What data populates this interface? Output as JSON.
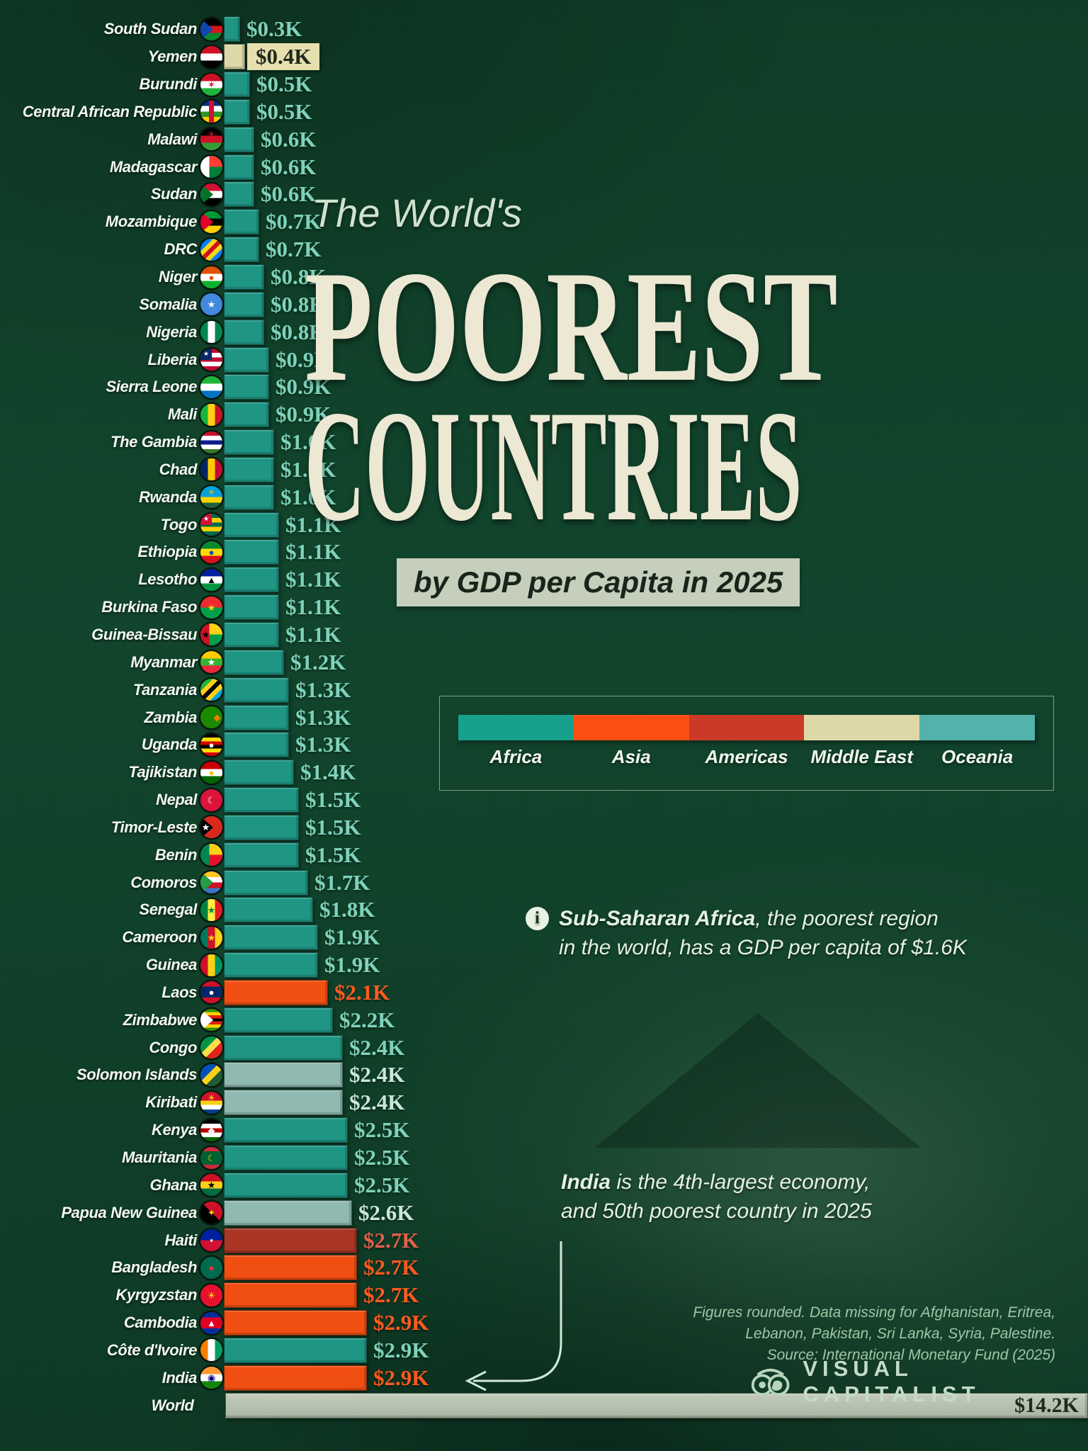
{
  "title": {
    "pre": "The World's",
    "line1": "POOREST",
    "line2": "COUNTRIES",
    "subtitle": "by GDP per Capita in 2025"
  },
  "legend": {
    "items": [
      {
        "label": "Africa",
        "color": "#17a08b"
      },
      {
        "label": "Asia",
        "color": "#fb4f14"
      },
      {
        "label": "Americas",
        "color": "#cb3927"
      },
      {
        "label": "Middle East",
        "color": "#ded8a8"
      },
      {
        "label": "Oceania",
        "color": "#53b3ab"
      }
    ]
  },
  "annotations": {
    "note1": {
      "bold": "Sub-Saharan Africa",
      "rest": ", the poorest region",
      "line2": "in the world, has a GDP per capita of $1.6K"
    },
    "note2": {
      "bold": "India",
      "rest": " is the 4th-largest economy,",
      "line2": "and 50th poorest country in 2025"
    }
  },
  "footer": {
    "line1": "Figures rounded. Data missing for Afghanistan, Eritrea,",
    "line2": "Lebanon, Pakistan, Sri Lanka, Syria, Palestine.",
    "line3": "Source: International Monetary Fund (2025)",
    "brand": "VISUAL CAPITALIST"
  },
  "region_colors": {
    "africa": {
      "bar": "#1f9583",
      "value_text": "#7fd2ba"
    },
    "asia": {
      "bar": "#f14e12",
      "value_text": "#ff5a1f"
    },
    "americas": {
      "bar": "#a93524",
      "value_text": "#e2604b"
    },
    "middle_east": {
      "bar": "#ded8a8",
      "value_text": "#20291b"
    },
    "oceania": {
      "bar": "#8fb9b1",
      "value_text": "#c9e6dc"
    },
    "world": {
      "bar": "#b6c0af",
      "value_text": "#1e2b1c"
    }
  },
  "chart_data": {
    "type": "bar",
    "orientation": "horizontal",
    "title": "The World's Poorest Countries by GDP per Capita in 2025",
    "unit": "GDP per capita, USD thousands",
    "legend_position": "right-middle",
    "xlim": [
      0,
      14.2
    ],
    "rows": [
      {
        "country": "South Sudan",
        "value": 0.3,
        "label": "$0.3K",
        "region": "africa",
        "flag": {
          "c": [
            "#000000",
            "#da121a",
            "#078930"
          ],
          "tri": "#0f47af"
        }
      },
      {
        "country": "Yemen",
        "value": 0.4,
        "label": "$0.4K",
        "region": "middle_east",
        "highlight": true,
        "flag": {
          "c": [
            "#ce1126",
            "#ffffff",
            "#000000"
          ]
        }
      },
      {
        "country": "Burundi",
        "value": 0.5,
        "label": "$0.5K",
        "region": "africa",
        "flag": {
          "c": [
            "#ce1126",
            "#ffffff",
            "#1eb53a"
          ],
          "e": "✶",
          "ec": "#ce1126"
        }
      },
      {
        "country": "Central African Republic",
        "value": 0.5,
        "label": "$0.5K",
        "region": "africa",
        "flag": {
          "c": [
            "#003082",
            "#ffffff",
            "#289728",
            "#ffce00"
          ],
          "vbar": "#d21034"
        }
      },
      {
        "country": "Malawi",
        "value": 0.6,
        "label": "$0.6K",
        "region": "africa",
        "flag": {
          "c": [
            "#000000",
            "#ce1126",
            "#339e35"
          ],
          "e": "☀",
          "ec": "#ce1126",
          "epos": "top"
        }
      },
      {
        "country": "Madagascar",
        "value": 0.6,
        "label": "$0.6K",
        "region": "africa",
        "flag": {
          "panes": {
            "side": "#ffffff",
            "top": "#fc3d32",
            "bottom": "#007e3a"
          }
        }
      },
      {
        "country": "Sudan",
        "value": 0.6,
        "label": "$0.6K",
        "region": "africa",
        "flag": {
          "c": [
            "#d21034",
            "#ffffff",
            "#000000"
          ],
          "tri": "#007229"
        }
      },
      {
        "country": "Mozambique",
        "value": 0.7,
        "label": "$0.7K",
        "region": "africa",
        "flag": {
          "c": [
            "#009739",
            "#000000",
            "#ffd100"
          ],
          "tri": "#e4002b"
        }
      },
      {
        "country": "DRC",
        "value": 0.7,
        "label": "$0.7K",
        "region": "africa",
        "flag": {
          "dir": "d",
          "c": [
            "#007fff",
            "#007fff",
            "#f7d618",
            "#ce1021",
            "#f7d618",
            "#007fff",
            "#007fff"
          ]
        }
      },
      {
        "country": "Niger",
        "value": 0.8,
        "label": "$0.8K",
        "region": "africa",
        "flag": {
          "c": [
            "#e05206",
            "#ffffff",
            "#0db02b"
          ],
          "e": "●",
          "ec": "#e05206"
        }
      },
      {
        "country": "Somalia",
        "value": 0.8,
        "label": "$0.8K",
        "region": "africa",
        "flag": {
          "c": [
            "#4189dd"
          ],
          "e": "★",
          "ec": "#ffffff"
        }
      },
      {
        "country": "Nigeria",
        "value": 0.8,
        "label": "$0.8K",
        "region": "africa",
        "flag": {
          "dir": "v",
          "c": [
            "#008751",
            "#ffffff",
            "#008751"
          ]
        }
      },
      {
        "country": "Liberia",
        "value": 0.9,
        "label": "$0.9K",
        "region": "africa",
        "flag": {
          "c": [
            "#bf0a30",
            "#ffffff",
            "#bf0a30",
            "#ffffff",
            "#bf0a30"
          ],
          "canton": "#002868"
        }
      },
      {
        "country": "Sierra Leone",
        "value": 0.9,
        "label": "$0.9K",
        "region": "africa",
        "flag": {
          "c": [
            "#1eb53a",
            "#ffffff",
            "#0072c6"
          ]
        }
      },
      {
        "country": "Mali",
        "value": 0.9,
        "label": "$0.9K",
        "region": "africa",
        "flag": {
          "dir": "v",
          "c": [
            "#14b53a",
            "#fcd116",
            "#ce1126"
          ]
        }
      },
      {
        "country": "The Gambia",
        "value": 1.0,
        "label": "$1.0K",
        "region": "africa",
        "flag": {
          "c": [
            "#ce1126",
            "#ffffff",
            "#0c1c8c",
            "#ffffff",
            "#3a7728"
          ]
        }
      },
      {
        "country": "Chad",
        "value": 1.0,
        "label": "$1.0K",
        "region": "africa",
        "flag": {
          "dir": "v",
          "c": [
            "#002664",
            "#fecb00",
            "#c60c30"
          ]
        }
      },
      {
        "country": "Rwanda",
        "value": 1.0,
        "label": "$1.0K",
        "region": "africa",
        "flag": {
          "c": [
            "#00a1de",
            "#00a1de",
            "#fad201",
            "#20603d"
          ],
          "e": "☀",
          "ec": "#e5be01",
          "epos": "top"
        }
      },
      {
        "country": "Togo",
        "value": 1.1,
        "label": "$1.1K",
        "region": "africa",
        "flag": {
          "c": [
            "#006a4e",
            "#ffce00",
            "#006a4e",
            "#ffce00",
            "#006a4e"
          ],
          "canton": "#d21034"
        }
      },
      {
        "country": "Ethiopia",
        "value": 1.1,
        "label": "$1.1K",
        "region": "africa",
        "flag": {
          "c": [
            "#078930",
            "#fcdd09",
            "#da121a"
          ],
          "e": "●",
          "ec": "#0f47af"
        }
      },
      {
        "country": "Lesotho",
        "value": 1.1,
        "label": "$1.1K",
        "region": "africa",
        "flag": {
          "c": [
            "#00209f",
            "#ffffff",
            "#009543"
          ],
          "e": "▲",
          "ec": "#000000"
        }
      },
      {
        "country": "Burkina Faso",
        "value": 1.1,
        "label": "$1.1K",
        "region": "africa",
        "flag": {
          "c": [
            "#ef2b2d",
            "#009e49"
          ],
          "e": "★",
          "ec": "#fcd116"
        }
      },
      {
        "country": "Guinea-Bissau",
        "value": 1.1,
        "label": "$1.1K",
        "region": "africa",
        "flag": {
          "panes": {
            "side": "#ce1126",
            "top": "#fcd116",
            "bottom": "#009e49"
          },
          "e": "★",
          "ec": "#000000",
          "epos": "left"
        }
      },
      {
        "country": "Myanmar",
        "value": 1.2,
        "label": "$1.2K",
        "region": "africa",
        "flag": {
          "c": [
            "#fecb00",
            "#34b233",
            "#ea2839"
          ],
          "e": "★",
          "ec": "#ffffff"
        }
      },
      {
        "country": "Tanzania",
        "value": 1.3,
        "label": "$1.3K",
        "region": "africa",
        "flag": {
          "dir": "d",
          "c": [
            "#1eb53a",
            "#1eb53a",
            "#fcd116",
            "#000000",
            "#fcd116",
            "#00a3dd",
            "#00a3dd"
          ]
        }
      },
      {
        "country": "Zambia",
        "value": 1.3,
        "label": "$1.3K",
        "region": "africa",
        "flag": {
          "c": [
            "#198a00"
          ],
          "e": "◆",
          "ec": "#ef7d00",
          "epos": "right"
        }
      },
      {
        "country": "Uganda",
        "value": 1.3,
        "label": "$1.3K",
        "region": "africa",
        "flag": {
          "c": [
            "#000000",
            "#fcdc04",
            "#d90000",
            "#000000",
            "#fcdc04",
            "#d90000"
          ],
          "e": "●",
          "ec": "#ffffff"
        }
      },
      {
        "country": "Tajikistan",
        "value": 1.4,
        "label": "$1.4K",
        "region": "africa",
        "flag": {
          "c": [
            "#cc0000",
            "#ffffff",
            "#006600"
          ],
          "e": "●",
          "ec": "#f8c300"
        }
      },
      {
        "country": "Nepal",
        "value": 1.5,
        "label": "$1.5K",
        "region": "africa",
        "flag": {
          "c": [
            "#dc143c"
          ],
          "e": "☾",
          "ec": "#ffffff"
        }
      },
      {
        "country": "Timor-Leste",
        "value": 1.5,
        "label": "$1.5K",
        "region": "africa",
        "flag": {
          "c": [
            "#da291c"
          ],
          "tri": "#000000",
          "e": "★",
          "ec": "#ffffff",
          "epos": "left"
        }
      },
      {
        "country": "Benin",
        "value": 1.5,
        "label": "$1.5K",
        "region": "africa",
        "flag": {
          "panes": {
            "side": "#008751",
            "top": "#fcd116",
            "bottom": "#e8112d"
          }
        }
      },
      {
        "country": "Comoros",
        "value": 1.7,
        "label": "$1.7K",
        "region": "africa",
        "flag": {
          "c": [
            "#ffc61e",
            "#ffffff",
            "#ce1126",
            "#3a75c4"
          ],
          "tri": "#239e46"
        }
      },
      {
        "country": "Senegal",
        "value": 1.8,
        "label": "$1.8K",
        "region": "africa",
        "flag": {
          "dir": "v",
          "c": [
            "#00853f",
            "#fdef42",
            "#e31b23"
          ],
          "e": "★",
          "ec": "#00853f"
        }
      },
      {
        "country": "Cameroon",
        "value": 1.9,
        "label": "$1.9K",
        "region": "africa",
        "flag": {
          "dir": "v",
          "c": [
            "#007a5e",
            "#ce1126",
            "#fcd116"
          ],
          "e": "★",
          "ec": "#fcd116"
        }
      },
      {
        "country": "Guinea",
        "value": 1.9,
        "label": "$1.9K",
        "region": "africa",
        "flag": {
          "dir": "v",
          "c": [
            "#ce1126",
            "#fcd116",
            "#009460"
          ]
        }
      },
      {
        "country": "Laos",
        "value": 2.1,
        "label": "$2.1K",
        "region": "asia",
        "flag": {
          "c": [
            "#ce1126",
            "#002868",
            "#002868",
            "#ce1126"
          ],
          "e": "●",
          "ec": "#ffffff"
        }
      },
      {
        "country": "Zimbabwe",
        "value": 2.2,
        "label": "$2.2K",
        "region": "africa",
        "flag": {
          "c": [
            "#319208",
            "#ffd200",
            "#de2010",
            "#000000",
            "#de2010",
            "#ffd200",
            "#319208"
          ],
          "tri": "#ffffff"
        }
      },
      {
        "country": "Congo",
        "value": 2.4,
        "label": "$2.4K",
        "region": "africa",
        "flag": {
          "dir": "d",
          "c": [
            "#009543",
            "#009543",
            "#fbde4a",
            "#dc241f",
            "#dc241f"
          ]
        }
      },
      {
        "country": "Solomon Islands",
        "value": 2.4,
        "label": "$2.4K",
        "region": "oceania",
        "flag": {
          "dir": "d",
          "c": [
            "#0051ba",
            "#0051ba",
            "#fcd116",
            "#215b33",
            "#215b33"
          ]
        }
      },
      {
        "country": "Kiribati",
        "value": 2.4,
        "label": "$2.4K",
        "region": "oceania",
        "flag": {
          "c": [
            "#ce1126",
            "#ce1126",
            "#fcd116",
            "#ffffff",
            "#003f87"
          ],
          "e": "☀",
          "ec": "#fcd116",
          "epos": "top"
        }
      },
      {
        "country": "Kenya",
        "value": 2.5,
        "label": "$2.5K",
        "region": "africa",
        "flag": {
          "c": [
            "#000000",
            "#ffffff",
            "#bb0000",
            "#ffffff",
            "#006600"
          ],
          "e": "◆",
          "ec": "#f0f0f0"
        }
      },
      {
        "country": "Mauritania",
        "value": 2.5,
        "label": "$2.5K",
        "region": "africa",
        "flag": {
          "c": [
            "#cd2a3e",
            "#006233",
            "#006233",
            "#006233",
            "#cd2a3e"
          ],
          "e": "☾",
          "ec": "#ffc400"
        }
      },
      {
        "country": "Ghana",
        "value": 2.5,
        "label": "$2.5K",
        "region": "africa",
        "flag": {
          "c": [
            "#ce1126",
            "#fcd116",
            "#006b3f"
          ],
          "e": "★",
          "ec": "#000000"
        }
      },
      {
        "country": "Papua New Guinea",
        "value": 2.6,
        "label": "$2.6K",
        "region": "oceania",
        "flag": {
          "dir": "d45",
          "c": [
            "#000000",
            "#000000",
            "#ce1126",
            "#ce1126"
          ],
          "e": "✦",
          "ec": "#fcd116"
        }
      },
      {
        "country": "Haiti",
        "value": 2.7,
        "label": "$2.7K",
        "region": "americas",
        "flag": {
          "c": [
            "#00209f",
            "#d21034"
          ],
          "e": "▪",
          "ec": "#ffffff"
        }
      },
      {
        "country": "Bangladesh",
        "value": 2.7,
        "label": "$2.7K",
        "region": "asia",
        "flag": {
          "c": [
            "#006a4e"
          ],
          "e": "●",
          "ec": "#f42a41"
        }
      },
      {
        "country": "Kyrgyzstan",
        "value": 2.7,
        "label": "$2.7K",
        "region": "asia",
        "flag": {
          "c": [
            "#e8112d"
          ],
          "e": "☀",
          "ec": "#ffef00"
        }
      },
      {
        "country": "Cambodia",
        "value": 2.9,
        "label": "$2.9K",
        "region": "asia",
        "flag": {
          "c": [
            "#032ea1",
            "#e00025",
            "#e00025",
            "#032ea1"
          ],
          "e": "▲",
          "ec": "#ffffff"
        }
      },
      {
        "country": "Côte d'Ivoire",
        "value": 2.9,
        "label": "$2.9K",
        "region": "africa",
        "flag": {
          "dir": "v",
          "c": [
            "#f77f00",
            "#ffffff",
            "#009e60"
          ]
        }
      },
      {
        "country": "India",
        "value": 2.9,
        "label": "$2.9K",
        "region": "asia",
        "arrow": true,
        "flag": {
          "c": [
            "#ff9933",
            "#ffffff",
            "#138808"
          ],
          "e": "◉",
          "ec": "#000080"
        }
      },
      {
        "country": "World",
        "value": 14.2,
        "label": "$14.2K",
        "region": "world",
        "full_width": true
      }
    ]
  }
}
